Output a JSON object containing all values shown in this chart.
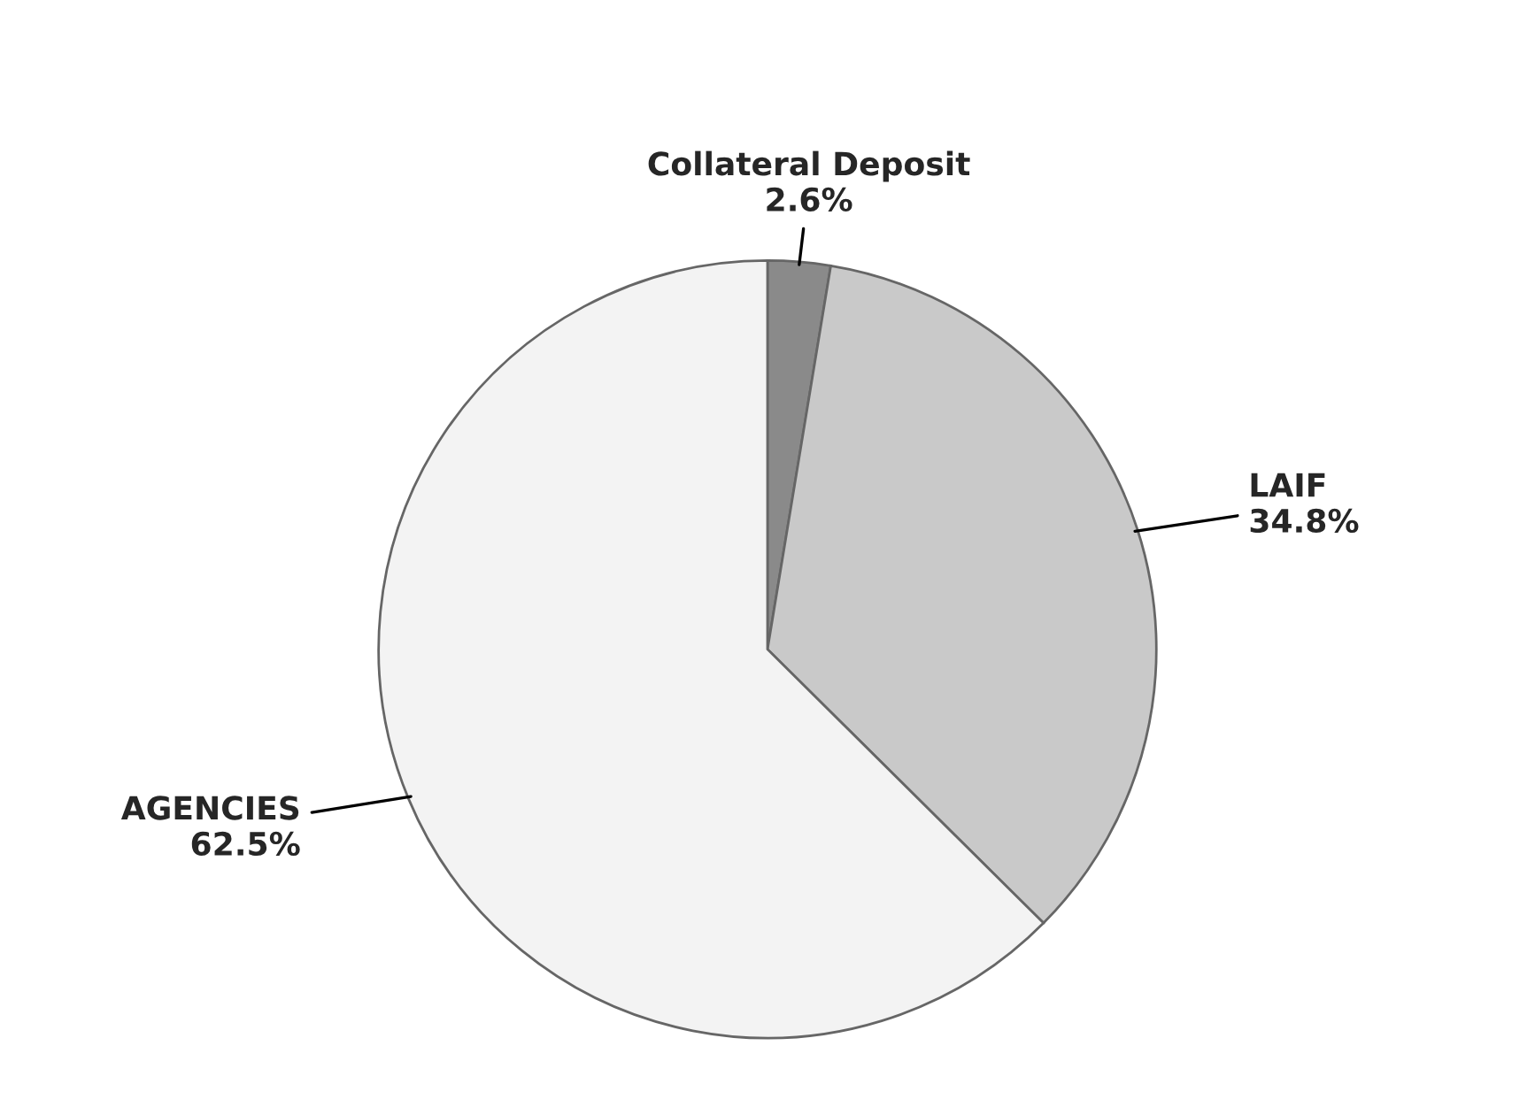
{
  "chart_data": {
    "type": "pie",
    "categories": [
      "Collateral Deposit",
      "LAIF",
      "AGENCIES"
    ],
    "values": [
      2.6,
      34.8,
      62.5
    ],
    "value_labels": [
      "2.6%",
      "34.8%",
      "62.5%"
    ],
    "colors": [
      "#8a8a8a",
      "#c9c9c9",
      "#f3f3f3"
    ]
  }
}
